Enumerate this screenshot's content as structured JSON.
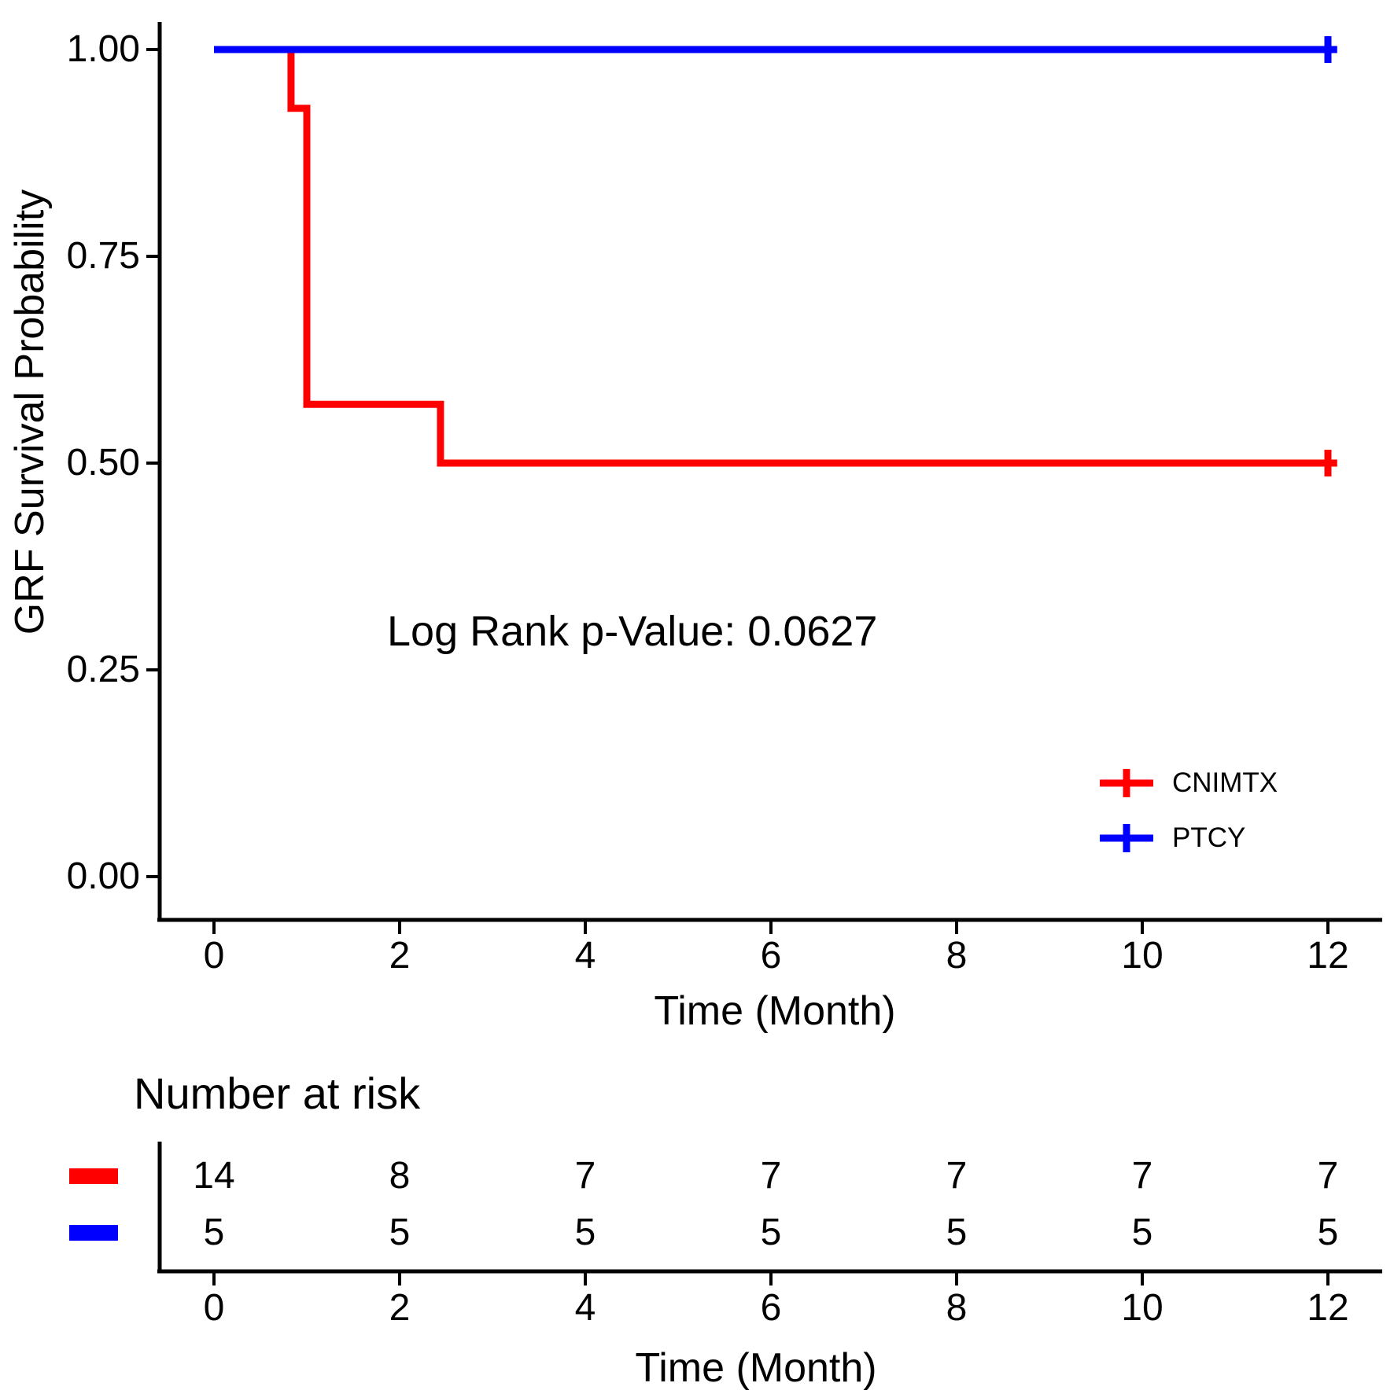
{
  "chart_data": {
    "type": "line",
    "subtype": "kaplan-meier-step-plot",
    "title": "",
    "ylabel": "GRF Survival Probability",
    "xlabel": "Time (Month)",
    "xlim": [
      0,
      12
    ],
    "ylim": [
      0.0,
      1.0
    ],
    "grid": "off",
    "annotation": "Log Rank p-Value: 0.0627",
    "x_ticks": [
      0,
      2,
      4,
      6,
      8,
      10,
      12
    ],
    "x_tick_labels": [
      "0",
      "2",
      "4",
      "6",
      "8",
      "10",
      "12"
    ],
    "y_ticks": [
      1.0,
      0.75,
      0.5,
      0.25,
      0.0
    ],
    "y_tick_labels": [
      "1.00",
      "0.75",
      "0.50",
      "0.25",
      "0.00"
    ],
    "legend_position": "inside-right-lower",
    "legend": [
      {
        "label": "CNIMTX",
        "color": "#FF0000",
        "symbol": "plus-on-line"
      },
      {
        "label": "PTCY",
        "color": "#0000FF",
        "symbol": "plus-on-line"
      }
    ],
    "series": [
      {
        "name": "CNIMTX",
        "color": "#FF0000",
        "step_points": [
          [
            0,
            1.0
          ],
          [
            0.83,
            1.0
          ],
          [
            0.83,
            0.929
          ],
          [
            1.0,
            0.929
          ],
          [
            1.0,
            0.571
          ],
          [
            2.44,
            0.571
          ],
          [
            2.44,
            0.5
          ],
          [
            12.1,
            0.5
          ]
        ],
        "censor_marks": [
          [
            12,
            0.5
          ]
        ]
      },
      {
        "name": "PTCY",
        "color": "#0000FF",
        "step_points": [
          [
            0,
            1.0
          ],
          [
            12.1,
            1.0
          ]
        ],
        "censor_marks": [
          [
            12,
            1.0
          ]
        ]
      }
    ],
    "risk_table": {
      "title": "Number at risk",
      "xlabel": "Time (Month)",
      "x_ticks": [
        0,
        2,
        4,
        6,
        8,
        10,
        12
      ],
      "x_tick_labels": [
        "0",
        "2",
        "4",
        "6",
        "8",
        "10",
        "12"
      ],
      "rows": [
        {
          "name": "CNIMTX",
          "color": "#FF0000",
          "values": [
            "14",
            "8",
            "7",
            "7",
            "7",
            "7",
            "7"
          ]
        },
        {
          "name": "PTCY",
          "color": "#0000FF",
          "values": [
            "5",
            "5",
            "5",
            "5",
            "5",
            "5",
            "5"
          ]
        }
      ]
    }
  }
}
